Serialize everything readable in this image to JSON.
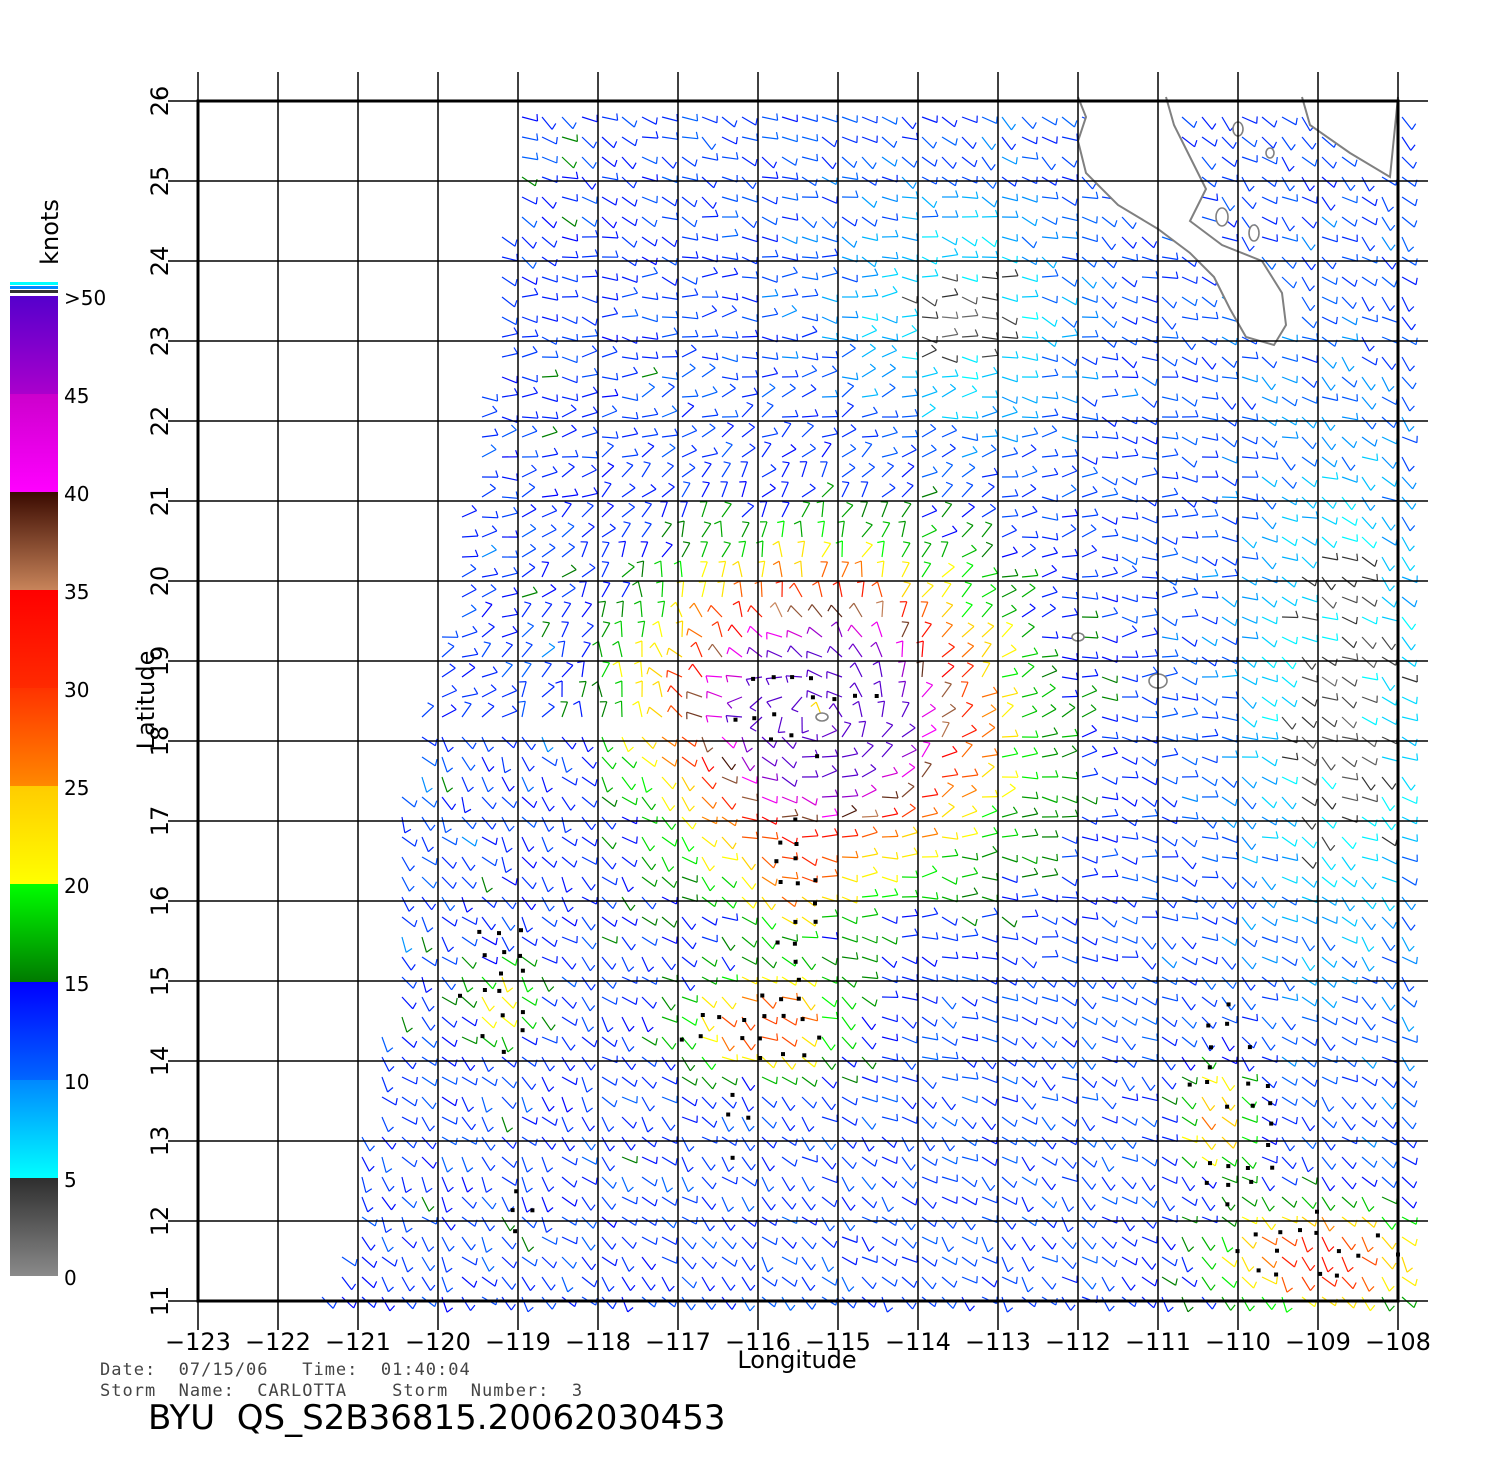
{
  "map": {
    "lon_range": [
      -123,
      -108
    ],
    "lat_range": [
      11,
      26
    ],
    "lon_ticks": [
      "-123",
      "-122",
      "-121",
      "-120",
      "-119",
      "-118",
      "-117",
      "-116",
      "-115",
      "-114",
      "-113",
      "-112",
      "-111",
      "-110",
      "-109",
      "-108"
    ],
    "lat_ticks": [
      "11",
      "12",
      "13",
      "14",
      "15",
      "16",
      "17",
      "18",
      "19",
      "20",
      "21",
      "22",
      "23",
      "24",
      "25",
      "26"
    ],
    "xlabel": "Longitude",
    "ylabel": "Latitude",
    "grid": true,
    "storm_center": {
      "lon": -115.2,
      "lat": 18.3
    },
    "coastline_color": "#808080",
    "rain_flag_color": "#000000"
  },
  "colorbar": {
    "unit": "knots",
    "labels": [
      "0",
      "5",
      "10",
      "15",
      "20",
      "25",
      "30",
      "35",
      "40",
      "45",
      ">50"
    ],
    "bands": [
      {
        "from": 0,
        "to": 5,
        "top": "#2e2e2e",
        "bottom": "#8a8a8a"
      },
      {
        "from": 5,
        "to": 10,
        "top": "#0088ff",
        "bottom": "#00ffff"
      },
      {
        "from": 10,
        "to": 15,
        "top": "#0000ff",
        "bottom": "#0066ff"
      },
      {
        "from": 15,
        "to": 20,
        "top": "#00ff00",
        "bottom": "#007a00"
      },
      {
        "from": 20,
        "to": 25,
        "top": "#ffcc00",
        "bottom": "#ffff00"
      },
      {
        "from": 25,
        "to": 30,
        "top": "#ff3300",
        "bottom": "#ff8800"
      },
      {
        "from": 30,
        "to": 35,
        "top": "#ff0000",
        "bottom": "#ff2a00"
      },
      {
        "from": 35,
        "to": 40,
        "top": "#3a0a00",
        "bottom": "#c8845a"
      },
      {
        "from": 40,
        "to": 45,
        "top": "#cc00cc",
        "bottom": "#ff00ff"
      },
      {
        "from": 45,
        "to": 50,
        "top": "#5500cc",
        "bottom": "#aa00cc"
      }
    ]
  },
  "meta": {
    "date_line": "Date:  07/15/06   Time:  01:40:04",
    "storm_line": "Storm  Name:  CARLOTTA    Storm  Number:  3",
    "product": "BYU  QS_S2B36815.20062030453"
  }
}
